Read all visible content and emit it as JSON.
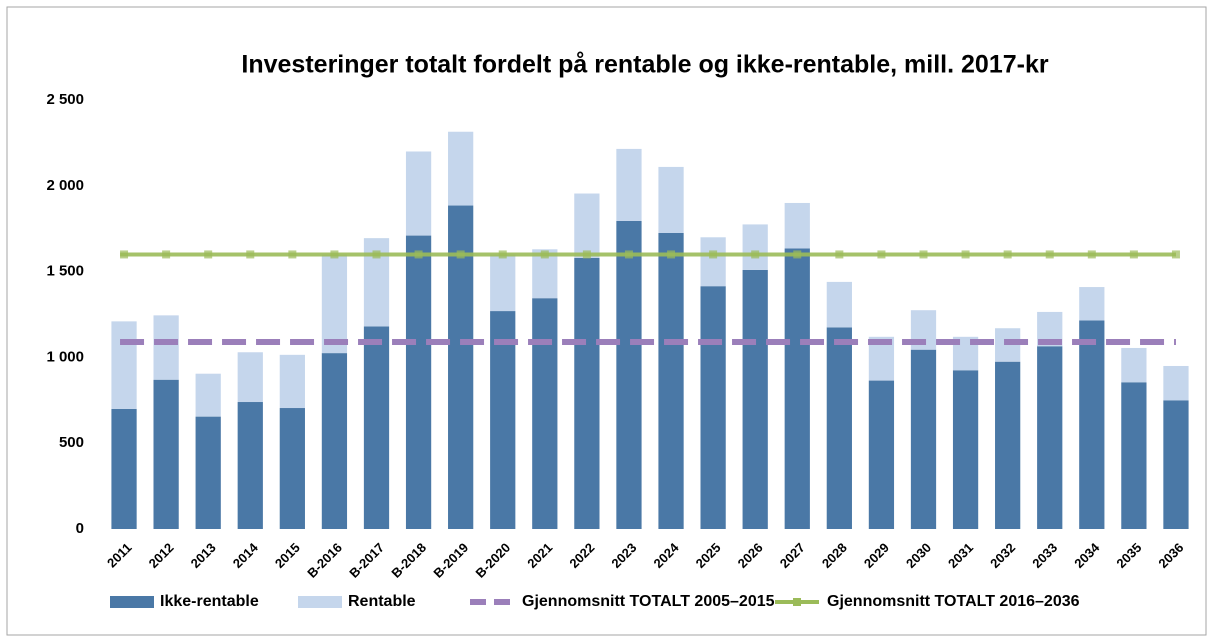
{
  "chart_data": {
    "type": "bar",
    "stacked": true,
    "title": "Investeringer  totalt fordelt på rentable og ikke-rentable, mill. 2017-kr",
    "categories": [
      "2011",
      "2012",
      "2013",
      "2014",
      "2015",
      "B-2016",
      "B-2017",
      "B-2018",
      "B-2019",
      "B-2020",
      "2021",
      "2022",
      "2023",
      "2024",
      "2025",
      "2026",
      "2027",
      "2028",
      "2029",
      "2030",
      "2031",
      "2032",
      "2033",
      "2034",
      "2035",
      "2036"
    ],
    "series": [
      {
        "name": "Ikke-rentable",
        "color": "#4a78a6",
        "values": [
          700,
          870,
          655,
          740,
          705,
          1025,
          1180,
          1710,
          1885,
          1270,
          1345,
          1580,
          1795,
          1725,
          1415,
          1510,
          1635,
          1175,
          865,
          1045,
          925,
          975,
          1065,
          1215,
          855,
          750
        ]
      },
      {
        "name": "Rentable",
        "color": "#c5d6ec",
        "values": [
          510,
          375,
          250,
          290,
          310,
          575,
          515,
          490,
          430,
          330,
          285,
          375,
          420,
          385,
          285,
          265,
          265,
          265,
          255,
          230,
          195,
          195,
          200,
          195,
          200,
          200
        ]
      },
      {
        "name": "Gjennomsnitt TOTALT 2005–2015",
        "type": "line",
        "dashed": true,
        "color": "#9b7fba",
        "values": [
          1090,
          1090,
          1090,
          1090,
          1090,
          1090,
          1090,
          1090,
          1090,
          1090,
          1090,
          1090,
          1090,
          1090,
          1090,
          1090,
          1090,
          1090,
          1090,
          1090,
          1090,
          1090,
          1090,
          1090,
          1090,
          1090
        ]
      },
      {
        "name": "Gjennomsnitt TOTALT 2016–2036",
        "type": "line",
        "markers": true,
        "color": "#9bbb59",
        "values": [
          1600,
          1600,
          1600,
          1600,
          1600,
          1600,
          1600,
          1600,
          1600,
          1600,
          1600,
          1600,
          1600,
          1600,
          1600,
          1600,
          1600,
          1600,
          1600,
          1600,
          1600,
          1600,
          1600,
          1600,
          1600,
          1600
        ]
      }
    ],
    "ylim": [
      0,
      2500
    ],
    "yticks": [
      0,
      500,
      {
        "value": 1000,
        "label": "1 000"
      },
      {
        "value": 1500,
        "label": "1 500"
      },
      {
        "value": 2000,
        "label": "2 000"
      },
      {
        "value": 2500,
        "label": "2 500"
      }
    ],
    "grid": false,
    "legend": "bottom"
  }
}
